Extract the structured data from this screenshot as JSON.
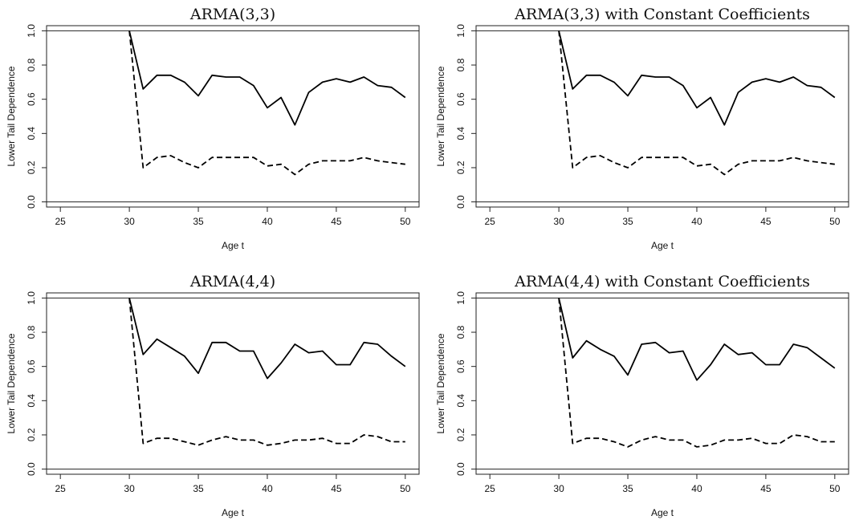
{
  "chart_data": [
    {
      "type": "line",
      "title": "ARMA(3,3)",
      "xlabel": "Age t",
      "ylabel": "Lower Tail Dependence",
      "xlim": [
        24,
        51
      ],
      "ylim": [
        -0.03,
        1.03
      ],
      "xticks": [
        25,
        30,
        35,
        40,
        45,
        50
      ],
      "yticks": [
        0.0,
        0.2,
        0.4,
        0.6,
        0.8,
        1.0
      ],
      "ytick_labels": [
        "0.0",
        "0.2",
        "0.4",
        "0.6",
        "0.8",
        "1.0"
      ],
      "hlines": [
        0,
        1
      ],
      "x": [
        30,
        31,
        32,
        33,
        34,
        35,
        36,
        37,
        38,
        39,
        40,
        41,
        42,
        43,
        44,
        45,
        46,
        47,
        48,
        49,
        50
      ],
      "series": [
        {
          "style": "solid",
          "values": [
            1.0,
            0.66,
            0.74,
            0.74,
            0.7,
            0.62,
            0.74,
            0.73,
            0.73,
            0.68,
            0.55,
            0.61,
            0.45,
            0.64,
            0.7,
            0.72,
            0.7,
            0.73,
            0.68,
            0.67,
            0.61
          ]
        },
        {
          "style": "dashed",
          "values": [
            1.0,
            0.2,
            0.26,
            0.27,
            0.23,
            0.2,
            0.26,
            0.26,
            0.26,
            0.26,
            0.21,
            0.22,
            0.16,
            0.22,
            0.24,
            0.24,
            0.24,
            0.26,
            0.24,
            0.23,
            0.22
          ]
        }
      ]
    },
    {
      "type": "line",
      "title": "ARMA(3,3) with Constant Coefficients",
      "xlabel": "Age t",
      "ylabel": "Lower Tail Dependence",
      "xlim": [
        24,
        51
      ],
      "ylim": [
        -0.03,
        1.03
      ],
      "xticks": [
        25,
        30,
        35,
        40,
        45,
        50
      ],
      "yticks": [
        0.0,
        0.2,
        0.4,
        0.6,
        0.8,
        1.0
      ],
      "ytick_labels": [
        "0.0",
        "0.2",
        "0.4",
        "0.6",
        "0.8",
        "1.0"
      ],
      "hlines": [
        0,
        1
      ],
      "x": [
        30,
        31,
        32,
        33,
        34,
        35,
        36,
        37,
        38,
        39,
        40,
        41,
        42,
        43,
        44,
        45,
        46,
        47,
        48,
        49,
        50
      ],
      "series": [
        {
          "style": "solid",
          "values": [
            1.0,
            0.66,
            0.74,
            0.74,
            0.7,
            0.62,
            0.74,
            0.73,
            0.73,
            0.68,
            0.55,
            0.61,
            0.45,
            0.64,
            0.7,
            0.72,
            0.7,
            0.73,
            0.68,
            0.67,
            0.61
          ]
        },
        {
          "style": "dashed",
          "values": [
            1.0,
            0.2,
            0.26,
            0.27,
            0.23,
            0.2,
            0.26,
            0.26,
            0.26,
            0.26,
            0.21,
            0.22,
            0.16,
            0.22,
            0.24,
            0.24,
            0.24,
            0.26,
            0.24,
            0.23,
            0.22
          ]
        }
      ]
    },
    {
      "type": "line",
      "title": "ARMA(4,4)",
      "xlabel": "Age t",
      "ylabel": "Lower Tail Dependence",
      "xlim": [
        24,
        51
      ],
      "ylim": [
        -0.03,
        1.03
      ],
      "xticks": [
        25,
        30,
        35,
        40,
        45,
        50
      ],
      "yticks": [
        0.0,
        0.2,
        0.4,
        0.6,
        0.8,
        1.0
      ],
      "ytick_labels": [
        "0.0",
        "0.2",
        "0.4",
        "0.6",
        "0.8",
        "1.0"
      ],
      "hlines": [
        0,
        1
      ],
      "x": [
        30,
        31,
        32,
        33,
        34,
        35,
        36,
        37,
        38,
        39,
        40,
        41,
        42,
        43,
        44,
        45,
        46,
        47,
        48,
        49,
        50
      ],
      "series": [
        {
          "style": "solid",
          "values": [
            1.0,
            0.67,
            0.76,
            0.71,
            0.66,
            0.56,
            0.74,
            0.74,
            0.69,
            0.69,
            0.53,
            0.62,
            0.73,
            0.68,
            0.69,
            0.61,
            0.61,
            0.74,
            0.73,
            0.66,
            0.6
          ]
        },
        {
          "style": "dashed",
          "values": [
            1.0,
            0.15,
            0.18,
            0.18,
            0.16,
            0.14,
            0.17,
            0.19,
            0.17,
            0.17,
            0.14,
            0.15,
            0.17,
            0.17,
            0.18,
            0.15,
            0.15,
            0.2,
            0.19,
            0.16,
            0.16
          ]
        }
      ]
    },
    {
      "type": "line",
      "title": "ARMA(4,4) with Constant Coefficients",
      "xlabel": "Age t",
      "ylabel": "Lower Tail Dependence",
      "xlim": [
        24,
        51
      ],
      "ylim": [
        -0.03,
        1.03
      ],
      "xticks": [
        25,
        30,
        35,
        40,
        45,
        50
      ],
      "yticks": [
        0.0,
        0.2,
        0.4,
        0.6,
        0.8,
        1.0
      ],
      "ytick_labels": [
        "0.0",
        "0.2",
        "0.4",
        "0.6",
        "0.8",
        "1.0"
      ],
      "hlines": [
        0,
        1
      ],
      "x": [
        30,
        31,
        32,
        33,
        34,
        35,
        36,
        37,
        38,
        39,
        40,
        41,
        42,
        43,
        44,
        45,
        46,
        47,
        48,
        49,
        50
      ],
      "series": [
        {
          "style": "solid",
          "values": [
            1.0,
            0.65,
            0.75,
            0.7,
            0.66,
            0.55,
            0.73,
            0.74,
            0.68,
            0.69,
            0.52,
            0.61,
            0.73,
            0.67,
            0.68,
            0.61,
            0.61,
            0.73,
            0.71,
            0.65,
            0.59
          ]
        },
        {
          "style": "dashed",
          "values": [
            1.0,
            0.15,
            0.18,
            0.18,
            0.16,
            0.13,
            0.17,
            0.19,
            0.17,
            0.17,
            0.13,
            0.14,
            0.17,
            0.17,
            0.18,
            0.15,
            0.15,
            0.2,
            0.19,
            0.16,
            0.16
          ]
        }
      ]
    }
  ]
}
